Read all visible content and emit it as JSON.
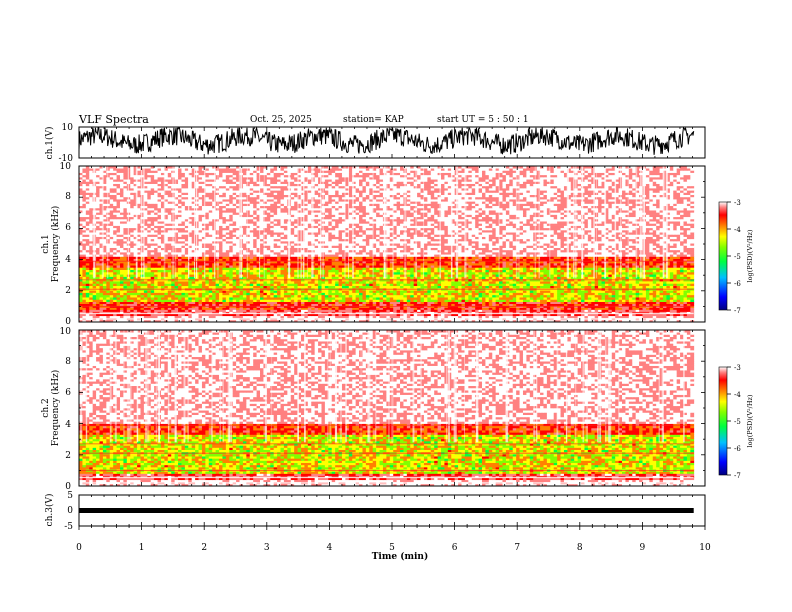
{
  "header": {
    "title": "VLF Spectra",
    "date": "Oct. 25, 2025",
    "station": "station= KAP",
    "start_ut": "start  UT =  5 : 50 : 1"
  },
  "colors": {
    "spectrogram_ramp": [
      "#000080",
      "#0000ff",
      "#00c0ff",
      "#00ff40",
      "#80ff00",
      "#ffff00",
      "#ff8000",
      "#ff0000",
      "#ff8080",
      "#ffffff"
    ],
    "trace": "#000000"
  },
  "chart_data": [
    {
      "type": "line",
      "name": "ch1-waveform",
      "ylabel": "ch.1(V)",
      "ylim": [
        -10,
        10
      ],
      "yticks": [
        "10",
        "-10"
      ],
      "description_series": "rapidly oscillating voltage, mostly between about -6 and 9 V",
      "xlim": [
        0,
        9.82
      ]
    },
    {
      "type": "heatmap",
      "name": "ch1-spectrogram",
      "ylabel": "ch.1\nFrequency (kHz)",
      "ylim": [
        0,
        10
      ],
      "yticks": [
        "0",
        "2",
        "4",
        "6",
        "8",
        "10"
      ],
      "xlim": [
        0,
        9.82
      ],
      "bands": [
        {
          "from_khz": 0.0,
          "to_khz": 0.4,
          "level": -3.1
        },
        {
          "from_khz": 0.4,
          "to_khz": 0.8,
          "level": -3.6
        },
        {
          "from_khz": 0.8,
          "to_khz": 1.3,
          "level": -3.9
        },
        {
          "from_khz": 1.3,
          "to_khz": 3.5,
          "level": -4.8
        },
        {
          "from_khz": 3.5,
          "to_khz": 4.2,
          "level": -4.0
        },
        {
          "from_khz": 4.2,
          "to_khz": 10.0,
          "level": -3.2
        }
      ],
      "colorbar": {
        "label": "log(PSD)(V²/Hz)",
        "range": [
          -7,
          -3
        ],
        "ticks": [
          "-3",
          "-4",
          "-5",
          "-6",
          "-7"
        ]
      }
    },
    {
      "type": "heatmap",
      "name": "ch2-spectrogram",
      "ylabel": "ch.2\nFrequency (kHz)",
      "ylim": [
        0,
        10
      ],
      "yticks": [
        "0",
        "2",
        "4",
        "6",
        "8",
        "10"
      ],
      "xlim": [
        0,
        9.82
      ],
      "bands": [
        {
          "from_khz": 0.0,
          "to_khz": 0.4,
          "level": -3.1
        },
        {
          "from_khz": 0.4,
          "to_khz": 0.8,
          "level": -3.6
        },
        {
          "from_khz": 0.8,
          "to_khz": 3.3,
          "level": -4.8
        },
        {
          "from_khz": 3.3,
          "to_khz": 4.0,
          "level": -4.0
        },
        {
          "from_khz": 4.0,
          "to_khz": 10.0,
          "level": -3.2
        }
      ],
      "colorbar": {
        "label": "log(PSD)(V²/Hz)",
        "range": [
          -7,
          -3
        ],
        "ticks": [
          "-3",
          "-4",
          "-5",
          "-6",
          "-7"
        ]
      }
    },
    {
      "type": "line",
      "name": "ch3-waveform",
      "ylabel": "ch.3(V)",
      "ylim": [
        -5,
        5
      ],
      "yticks": [
        "5",
        "0",
        "-5"
      ],
      "level": 0,
      "xlim": [
        0,
        9.82
      ]
    }
  ],
  "x_axis": {
    "label": "Time (min)",
    "range": [
      0,
      10
    ],
    "ticks": [
      "0",
      "1",
      "2",
      "3",
      "4",
      "5",
      "6",
      "7",
      "8",
      "9",
      "10"
    ]
  }
}
